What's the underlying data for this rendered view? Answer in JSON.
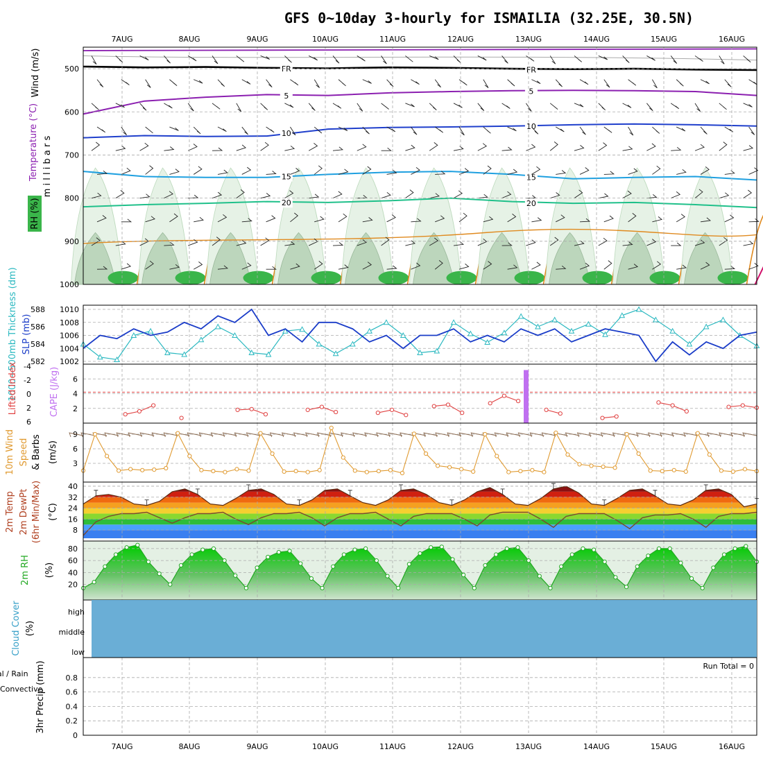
{
  "title": "GFS 0~10day 3-hourly for ISMAILIA (32.25E, 30.5N)",
  "dates": [
    "7AUG",
    "8AUG",
    "9AUG",
    "10AUG",
    "11AUG",
    "12AUG",
    "13AUG",
    "14AUG",
    "15AUG",
    "16AUG"
  ],
  "colors": {
    "rh_green": "#3ab54a",
    "temp_purple": "#8b1fb0",
    "temp_blue": "#1f3fcc",
    "temp_cyan": "#1fa0e0",
    "temp_teal": "#1fc08a",
    "temp_orange": "#e08a1f",
    "temp_red": "#d0106a",
    "slp_blue": "#1a3cc8",
    "thick_cyan": "#2ab8c0",
    "li_red": "#e04040",
    "cape_purple": "#c070f0",
    "wind_orange": "#e09a30",
    "cloud_blue": "#6aaed6",
    "rh2m_green": "#22a822"
  },
  "chart_data": [
    {
      "id": "upper_air",
      "type": "contour",
      "ylabel": "m i l l i b a r s",
      "side_labels": [
        "Wind (m/s)",
        "Temperature (°C)",
        "RH (%)"
      ],
      "yticks": [
        500,
        600,
        700,
        800,
        900,
        1000
      ],
      "ylim": [
        450,
        1000
      ],
      "isotherm_labels": [
        "FR",
        "5",
        "10",
        "15",
        "20"
      ],
      "isotherms": [
        {
          "label": "FR",
          "color": "#000000",
          "p": [
            495,
            497,
            496,
            498,
            499,
            497,
            498,
            500,
            501,
            500,
            502,
            503
          ]
        },
        {
          "label": "5",
          "color": "#8b1fb0",
          "p": [
            605,
            575,
            566,
            560,
            562,
            556,
            553,
            551,
            550,
            551,
            553,
            562
          ]
        },
        {
          "label": "10",
          "color": "#1f3fcc",
          "p": [
            660,
            655,
            657,
            656,
            640,
            636,
            635,
            633,
            630,
            628,
            630,
            633
          ]
        },
        {
          "label": "15",
          "color": "#1fa0e0",
          "p": [
            738,
            750,
            752,
            752,
            745,
            740,
            738,
            745,
            755,
            752,
            750,
            758
          ]
        },
        {
          "label": "20",
          "color": "#1fc08a",
          "p": [
            820,
            815,
            812,
            808,
            810,
            806,
            800,
            808,
            812,
            810,
            815,
            822
          ]
        }
      ]
    },
    {
      "id": "slp_thickness",
      "type": "line",
      "left_label": "1000~500mb Thickness (dm)",
      "right_label": "SLP (mb)",
      "left_ticks": [
        582,
        584,
        586,
        588
      ],
      "right_ticks": [
        1002,
        1004,
        1006,
        1008,
        1010
      ],
      "series": [
        {
          "name": "SLP (mb)",
          "color": "#1a3cc8",
          "values": [
            1004,
            1006,
            1005.5,
            1007,
            1006,
            1006.5,
            1008,
            1007,
            1009,
            1008,
            1010,
            1006,
            1007,
            1005,
            1008,
            1008,
            1007,
            1005,
            1006,
            1004,
            1006,
            1006,
            1007,
            1005,
            1006,
            1005,
            1007,
            1006,
            1007,
            1005,
            1006,
            1007,
            1006.5,
            1006,
            1002,
            1005,
            1003,
            1005,
            1004,
            1006,
            1006.5
          ]
        },
        {
          "name": "Thickness (dm)",
          "color": "#2ab8c0",
          "values": [
            584,
            582.5,
            582.2,
            585,
            585.5,
            583,
            582.8,
            584.5,
            586,
            585,
            583,
            582.8,
            585.5,
            585.7,
            584,
            582.9,
            584,
            585.5,
            586.5,
            585,
            583,
            583.2,
            586.5,
            585.2,
            584.2,
            585.3,
            587.2,
            586,
            586.8,
            585.5,
            586.3,
            585.1,
            587.3,
            588,
            586.8,
            585.5,
            584,
            586,
            586.8,
            585,
            583.8
          ]
        }
      ]
    },
    {
      "id": "li_cape",
      "type": "line+bar",
      "left_label": "Lifted Index",
      "right_label": "CAPE (J/kg)",
      "left_ticks": [
        6,
        2,
        0,
        -2,
        -4
      ],
      "right_ticks": [
        2,
        4,
        6
      ],
      "li_values": [
        null,
        null,
        null,
        1.2,
        1.6,
        2.4,
        null,
        0.7,
        null,
        null,
        null,
        1.8,
        1.9,
        1.2,
        null,
        null,
        1.8,
        2.2,
        1.5,
        null,
        null,
        1.4,
        1.8,
        1.1,
        null,
        2.3,
        2.5,
        1.4,
        null,
        2.7,
        3.7,
        3.0,
        null,
        1.8,
        1.3,
        null,
        null,
        0.7,
        0.9,
        null,
        null,
        2.8,
        2.4,
        1.6,
        null,
        null,
        2.2,
        2.4,
        2.1
      ],
      "cape_bar": {
        "day_index": 6.0,
        "value": 7.2
      }
    },
    {
      "id": "wind10m",
      "type": "line",
      "left_label": "10m Wind Speed & Barbs",
      "units": "(m/s)",
      "ticks": [
        3,
        6,
        9
      ],
      "values": [
        1.5,
        9,
        4.5,
        1.5,
        1.8,
        1.6,
        1.7,
        2.0,
        9.2,
        4.5,
        1.6,
        1.4,
        1.2,
        1.8,
        1.5,
        9.2,
        5,
        1.3,
        1.4,
        1.2,
        1.6,
        10.3,
        4.2,
        1.5,
        1.2,
        1.4,
        1.6,
        1.0,
        9.1,
        5,
        2.5,
        2.2,
        1.8,
        1.3,
        9,
        4.5,
        1.2,
        1.4,
        1.6,
        1.2,
        9.3,
        4.8,
        2.8,
        2.5,
        2.3,
        2.1,
        9,
        5,
        1.5,
        1.4,
        1.6,
        1.3,
        9.2,
        4.8,
        1.5,
        1.3,
        1.8,
        1.4
      ]
    },
    {
      "id": "temp2m",
      "type": "area+line",
      "left_label": "2m Temp 2m DewPt (6hr Min/Max)",
      "units": "(°C)",
      "ticks": [
        8,
        16,
        24,
        32,
        40
      ],
      "temp_values": [
        27,
        33,
        34,
        32,
        27,
        26,
        29,
        36,
        38,
        34,
        27,
        26,
        31,
        37,
        38,
        34,
        27,
        26,
        30,
        37,
        38,
        33,
        28,
        26,
        30,
        37,
        38,
        34,
        28,
        26,
        30,
        36,
        39,
        34,
        27,
        26,
        31,
        38,
        40,
        35,
        27,
        26,
        31,
        37,
        38,
        33,
        27,
        26,
        30,
        37,
        38,
        34,
        25,
        27
      ],
      "dewpt_values": [
        4,
        14,
        18,
        20,
        20,
        21,
        17,
        13,
        17,
        20,
        20,
        21,
        16,
        12,
        17,
        20,
        20,
        21,
        17,
        11,
        17,
        20,
        20,
        21,
        16,
        11,
        18,
        20,
        20,
        20,
        16,
        11,
        19,
        21,
        21,
        21,
        16,
        10,
        18,
        20,
        20,
        20,
        15,
        9,
        17,
        19,
        19,
        20,
        16,
        10,
        18,
        20,
        20,
        21
      ]
    },
    {
      "id": "rh2m",
      "type": "area",
      "left_label": "2m RH",
      "units": "(%)",
      "ticks": [
        20,
        40,
        60,
        80
      ],
      "values": [
        14,
        24,
        50,
        70,
        82,
        86,
        58,
        38,
        20,
        52,
        70,
        78,
        80,
        60,
        35,
        14,
        48,
        66,
        74,
        76,
        55,
        30,
        14,
        50,
        70,
        78,
        80,
        60,
        34,
        14,
        54,
        72,
        82,
        83,
        62,
        36,
        14,
        52,
        70,
        80,
        82,
        60,
        34,
        14,
        50,
        70,
        80,
        78,
        58,
        32,
        16,
        50,
        68,
        80,
        80,
        56,
        30,
        14,
        48,
        70,
        80,
        84,
        58
      ]
    },
    {
      "id": "cloud",
      "type": "band",
      "left_label": "Cloud Cover",
      "units": "(%)",
      "levels": [
        "high",
        "middle",
        "low"
      ]
    },
    {
      "id": "precip",
      "type": "bar",
      "left_label": "3hr Precip (mm)",
      "legend": [
        "Total / Rain",
        "Convective"
      ],
      "ticks": [
        "0",
        "0.2",
        "0.4",
        "0.6",
        "0.8"
      ],
      "ylim": [
        0,
        1
      ],
      "run_total": "Run Total = 0"
    }
  ]
}
